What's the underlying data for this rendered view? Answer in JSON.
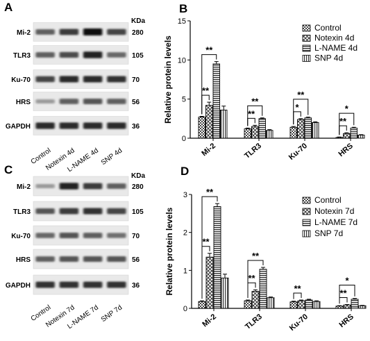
{
  "panels": {
    "A": {
      "label": "A"
    },
    "B": {
      "label": "B"
    },
    "C": {
      "label": "C"
    },
    "D": {
      "label": "D"
    }
  },
  "blots": [
    {
      "panel": "A",
      "kda_label": "KDa",
      "lanes": [
        "Control",
        "Notexin 4d",
        "L-NAME 4d",
        "SNP 4d"
      ],
      "bands": [
        {
          "protein": "Mi-2",
          "kda": "280",
          "intensity": [
            0.55,
            0.75,
            1.0,
            0.7
          ]
        },
        {
          "protein": "TLR3",
          "kda": "105",
          "intensity": [
            0.55,
            0.65,
            0.9,
            0.5
          ]
        },
        {
          "protein": "Ku-70",
          "kda": "70",
          "intensity": [
            0.7,
            0.85,
            0.85,
            0.8
          ]
        },
        {
          "protein": "HRS",
          "kda": "56",
          "intensity": [
            0.2,
            0.55,
            0.6,
            0.55
          ]
        },
        {
          "protein": "GAPDH",
          "kda": "36",
          "intensity": [
            0.85,
            0.85,
            0.85,
            0.85
          ]
        }
      ]
    },
    {
      "panel": "C",
      "kda_label": "KDa",
      "lanes": [
        "Control",
        "Notexin 7d",
        "L-NAME 7d",
        "SNP 7d"
      ],
      "bands": [
        {
          "protein": "Mi-2",
          "kda": "280",
          "intensity": [
            0.2,
            0.9,
            0.75,
            0.55
          ]
        },
        {
          "protein": "TLR3",
          "kda": "105",
          "intensity": [
            0.6,
            0.75,
            0.8,
            0.7
          ]
        },
        {
          "protein": "Ku-70",
          "kda": "70",
          "intensity": [
            0.5,
            0.6,
            0.55,
            0.45
          ]
        },
        {
          "protein": "HRS",
          "kda": "56",
          "intensity": [
            0.55,
            0.6,
            0.6,
            0.6
          ]
        },
        {
          "protein": "GAPDH",
          "kda": "36",
          "intensity": [
            0.8,
            0.8,
            0.8,
            0.8
          ]
        }
      ]
    }
  ],
  "chart_data": [
    {
      "panel": "B",
      "type": "bar",
      "ylabel": "Relative protein levels",
      "xlabel": "",
      "categories": [
        "Mi-2",
        "TLR3",
        "Ku-70",
        "HRS"
      ],
      "ylim": [
        0,
        15
      ],
      "yticks": [
        0,
        5,
        10,
        15
      ],
      "legend_position": "top-right",
      "series": [
        {
          "name": "Control",
          "pattern": "checker",
          "values": [
            2.7,
            1.2,
            1.4,
            0.1
          ],
          "errors": [
            0.1,
            0.1,
            0.1,
            0.05
          ]
        },
        {
          "name": "Notexin 4d",
          "pattern": "cross",
          "values": [
            4.2,
            1.5,
            2.4,
            0.6
          ],
          "errors": [
            0.4,
            0.15,
            0.1,
            0.1
          ]
        },
        {
          "name": "L-NAME 4d",
          "pattern": "hlines",
          "values": [
            9.5,
            2.5,
            2.6,
            1.3
          ],
          "errors": [
            0.3,
            0.1,
            0.1,
            0.1
          ]
        },
        {
          "name": "SNP 4d",
          "pattern": "vlines",
          "values": [
            3.6,
            1.0,
            2.0,
            0.4
          ],
          "errors": [
            0.5,
            0.1,
            0.1,
            0.05
          ]
        }
      ],
      "significance": [
        {
          "category": 0,
          "from": 0,
          "to": 2,
          "label": "**"
        },
        {
          "category": 0,
          "from": 0,
          "to": 1,
          "label": "**"
        },
        {
          "category": 1,
          "from": 0,
          "to": 2,
          "label": "**"
        },
        {
          "category": 1,
          "from": 0,
          "to": 1,
          "label": "**"
        },
        {
          "category": 2,
          "from": 0,
          "to": 2,
          "label": "**"
        },
        {
          "category": 2,
          "from": 0,
          "to": 1,
          "label": "*"
        },
        {
          "category": 3,
          "from": 0,
          "to": 2,
          "label": "*"
        },
        {
          "category": 3,
          "from": 0,
          "to": 1,
          "label": "**"
        }
      ]
    },
    {
      "panel": "D",
      "type": "bar",
      "ylabel": "Relative protein levels",
      "xlabel": "",
      "categories": [
        "Mi-2",
        "TLR3",
        "Ku-70",
        "HRS"
      ],
      "ylim": [
        0,
        3
      ],
      "yticks": [
        0,
        1,
        2,
        3
      ],
      "legend_position": "top-right",
      "series": [
        {
          "name": "Control",
          "pattern": "checker",
          "values": [
            0.18,
            0.2,
            0.17,
            0.06
          ],
          "errors": [
            0.02,
            0.02,
            0.02,
            0.01
          ]
        },
        {
          "name": "Notexin 7d",
          "pattern": "cross",
          "values": [
            1.35,
            0.45,
            0.2,
            0.09
          ],
          "errors": [
            0.1,
            0.04,
            0.02,
            0.01
          ]
        },
        {
          "name": "L-NAME 7d",
          "pattern": "hlines",
          "values": [
            2.68,
            1.03,
            0.22,
            0.24
          ],
          "errors": [
            0.08,
            0.05,
            0.02,
            0.02
          ]
        },
        {
          "name": "SNP 7d",
          "pattern": "vlines",
          "values": [
            0.8,
            0.28,
            0.18,
            0.07
          ],
          "errors": [
            0.1,
            0.02,
            0.02,
            0.01
          ]
        }
      ],
      "significance": [
        {
          "category": 0,
          "from": 0,
          "to": 2,
          "label": "**"
        },
        {
          "category": 0,
          "from": 0,
          "to": 1,
          "label": "**"
        },
        {
          "category": 1,
          "from": 0,
          "to": 2,
          "label": "**"
        },
        {
          "category": 1,
          "from": 0,
          "to": 1,
          "label": "**"
        },
        {
          "category": 2,
          "from": 0,
          "to": 1,
          "label": "**"
        },
        {
          "category": 3,
          "from": 0,
          "to": 2,
          "label": "*"
        },
        {
          "category": 3,
          "from": 0,
          "to": 1,
          "label": "**"
        }
      ]
    }
  ]
}
